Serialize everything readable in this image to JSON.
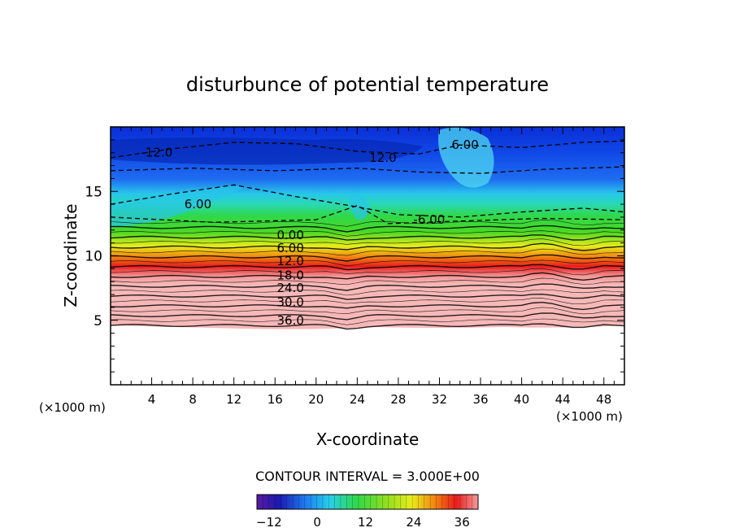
{
  "chart_data": {
    "type": "heatmap",
    "title": "disturbunce of potential temperature",
    "xlabel": "X-coordinate",
    "ylabel": "Z-coordinate",
    "x_unit": "(×1000 m)",
    "x_unit_right": "(×1000 m)",
    "xlim": [
      0,
      50
    ],
    "ylim": [
      0,
      20
    ],
    "x_ticks": [
      "4",
      "8",
      "12",
      "16",
      "20",
      "24",
      "28",
      "32",
      "36",
      "40",
      "44",
      "48"
    ],
    "y_ticks": [
      "5",
      "10",
      "15"
    ],
    "contour_interval_text": "CONTOUR INTERVAL = 3.000E+00",
    "colorbar_ticks": [
      "−12",
      "0",
      "12",
      "24",
      "36"
    ],
    "contour_labels": [
      {
        "text": "-12.0",
        "x": 4.5,
        "z": 18.0
      },
      {
        "text": "12.0",
        "x": 26.5,
        "z": 17.6
      },
      {
        "text": "6.00",
        "x": 34.5,
        "z": 18.6
      },
      {
        "text": "6.00",
        "x": 8.5,
        "z": 14.0
      },
      {
        "text": "-6.00",
        "x": 31.0,
        "z": 12.8
      },
      {
        "text": "0.00",
        "x": 17.5,
        "z": 11.6
      },
      {
        "text": "6.00",
        "x": 17.5,
        "z": 10.6
      },
      {
        "text": "12.0",
        "x": 17.5,
        "z": 9.6
      },
      {
        "text": "18.0",
        "x": 17.5,
        "z": 8.5
      },
      {
        "text": "24.0",
        "x": 17.5,
        "z": 7.5
      },
      {
        "text": "30.0",
        "x": 17.5,
        "z": 6.4
      },
      {
        "text": "36.0",
        "x": 17.5,
        "z": 5.0
      }
    ],
    "value_range": [
      -15,
      40
    ],
    "colors": {
      "plot_top": "#0a2fd6",
      "band_blue": "#1e7cf0",
      "band_cyan": "#27d0e8",
      "band_green": "#2fd84a",
      "band_yellow": "#e8ec1c",
      "band_orange": "#f28a10",
      "band_red": "#e81c1c",
      "band_pink": "#f49a9a"
    }
  }
}
